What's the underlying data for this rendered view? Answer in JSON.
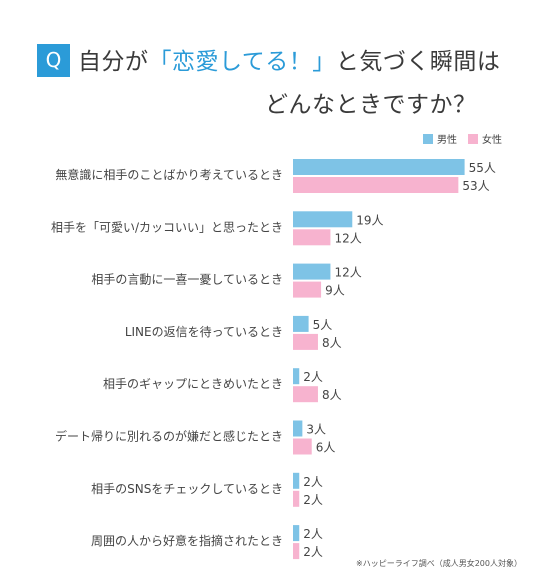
{
  "header": {
    "badge": "Q",
    "title_line1_pre": "自分が",
    "title_line1_hl": "「恋愛してる！」",
    "title_line1_post": "と気づく瞬間は",
    "title_line2": "どんなときですか？"
  },
  "footnote": "※ハッピーライフ調べ（成人男女200人対象）",
  "colors": {
    "male": "#7ec3e6",
    "female": "#f7b3cf",
    "accent": "#2b9bd8"
  },
  "chart_data": {
    "type": "bar",
    "orientation": "horizontal",
    "unit": "人",
    "categories": [
      "無意識に相手のことばかり考えているとき",
      "相手を「可愛い/カッコいい」と思ったとき",
      "相手の言動に一喜一憂しているとき",
      "LINEの返信を待っているとき",
      "相手のギャップにときめいたとき",
      "デート帰りに別れるのが嫌だと感じたとき",
      "相手のSNSをチェックしているとき",
      "周囲の人から好意を指摘されたとき"
    ],
    "series": [
      {
        "name": "男性",
        "values": [
          55,
          19,
          12,
          5,
          2,
          3,
          2,
          2
        ]
      },
      {
        "name": "女性",
        "values": [
          53,
          12,
          9,
          8,
          8,
          6,
          2,
          2
        ]
      }
    ],
    "legend_position": "top-right",
    "grid": false
  }
}
